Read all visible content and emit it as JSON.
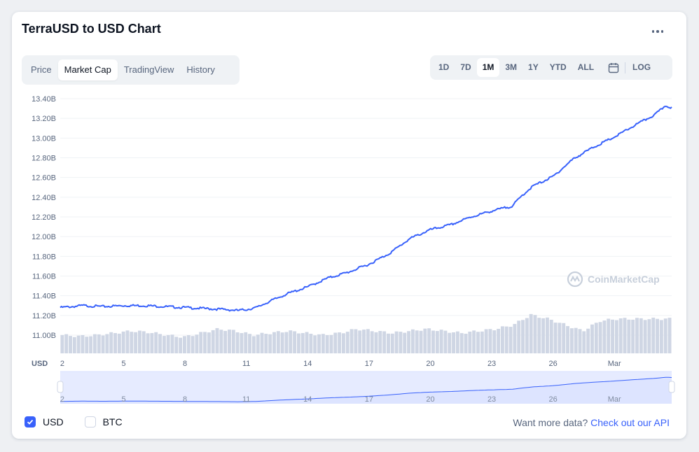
{
  "title": "TerraUSD to USD Chart",
  "tabs": [
    {
      "label": "Price",
      "active": false
    },
    {
      "label": "Market Cap",
      "active": true
    },
    {
      "label": "TradingView",
      "active": false
    },
    {
      "label": "History",
      "active": false
    }
  ],
  "ranges": [
    {
      "label": "1D",
      "active": false
    },
    {
      "label": "7D",
      "active": false
    },
    {
      "label": "1M",
      "active": true
    },
    {
      "label": "3M",
      "active": false
    },
    {
      "label": "1Y",
      "active": false
    },
    {
      "label": "YTD",
      "active": false
    },
    {
      "label": "ALL",
      "active": false
    }
  ],
  "log_label": "LOG",
  "watermark": "CoinMarketCap",
  "legend": [
    {
      "label": "USD",
      "checked": true
    },
    {
      "label": "BTC",
      "checked": false
    }
  ],
  "api": {
    "text": "Want more data?",
    "link": "Check out our API"
  },
  "colors": {
    "line": "#3861fb",
    "volume": "#cfd6e4",
    "navigator_fill": "#e6ebff",
    "grid": "#eff2f5"
  },
  "chart_data": {
    "type": "line",
    "ylabel": "USD",
    "ylim": [
      11.0,
      13.4
    ],
    "y_ticks": [
      "13.40B",
      "13.20B",
      "13.00B",
      "12.80B",
      "12.60B",
      "12.40B",
      "12.20B",
      "12.00B",
      "11.80B",
      "11.60B",
      "11.40B",
      "11.20B",
      "11.00B"
    ],
    "y_tick_values": [
      13.4,
      13.2,
      13.0,
      12.8,
      12.6,
      12.4,
      12.2,
      12.0,
      11.8,
      11.6,
      11.4,
      11.2,
      11.0
    ],
    "x_ticks": [
      "2",
      "5",
      "8",
      "11",
      "14",
      "17",
      "20",
      "23",
      "26",
      "Mar"
    ],
    "x_tick_days": [
      2,
      5,
      8,
      11,
      14,
      17,
      20,
      23,
      26,
      29
    ],
    "xlim": [
      1.9,
      31.8
    ],
    "series": [
      {
        "values_unit": "B USD",
        "x": [
          1.9,
          2.5,
          3.0,
          4.0,
          5.0,
          6.0,
          7.0,
          8.0,
          9.0,
          10.0,
          10.6,
          11.0,
          11.5,
          12.0,
          13.0,
          14.0,
          15.0,
          16.0,
          17.0,
          18.0,
          19.0,
          20.0,
          21.0,
          22.0,
          23.0,
          24.0,
          24.5,
          25.0,
          26.0,
          27.0,
          28.0,
          29.0,
          30.0,
          31.0,
          31.5,
          31.8
        ],
        "values": [
          11.28,
          11.29,
          11.3,
          11.29,
          11.3,
          11.3,
          11.29,
          11.28,
          11.27,
          11.26,
          11.25,
          11.26,
          11.28,
          11.33,
          11.42,
          11.49,
          11.58,
          11.64,
          11.72,
          11.83,
          11.98,
          12.07,
          12.12,
          12.2,
          12.26,
          12.31,
          12.42,
          12.51,
          12.61,
          12.79,
          12.91,
          13.01,
          13.13,
          13.24,
          13.33,
          13.31
        ]
      }
    ],
    "volume_relative": [
      0.45,
      0.42,
      0.45,
      0.5,
      0.55,
      0.52,
      0.45,
      0.4,
      0.5,
      0.6,
      0.55,
      0.45,
      0.5,
      0.55,
      0.5,
      0.45,
      0.5,
      0.6,
      0.55,
      0.5,
      0.55,
      0.6,
      0.55,
      0.5,
      0.55,
      0.6,
      0.7,
      0.95,
      0.85,
      0.7,
      0.55,
      0.8,
      0.85,
      0.85,
      0.85,
      0.85
    ],
    "navigator_ticks": [
      "2",
      "5",
      "8",
      "11",
      "14",
      "17",
      "20",
      "23",
      "26",
      "Mar"
    ]
  }
}
